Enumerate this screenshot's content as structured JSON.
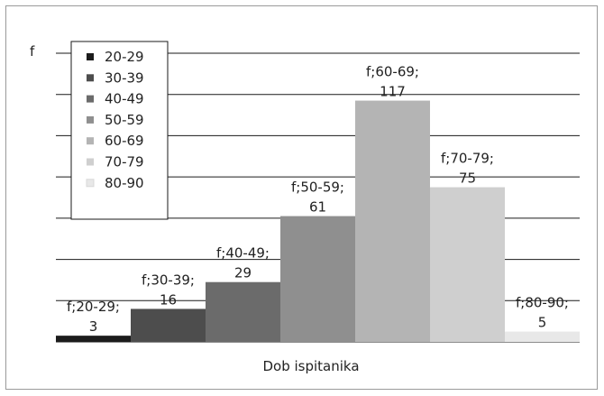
{
  "chart_data": {
    "type": "bar",
    "title": "",
    "xlabel": "Dob ispitanika",
    "ylabel": "f",
    "ylim": [
      0,
      140
    ],
    "grid": true,
    "legend_position": "top-left",
    "categories": [
      "20-29",
      "30-39",
      "40-49",
      "50-59",
      "60-69",
      "70-79",
      "80-90"
    ],
    "values": [
      3,
      16,
      29,
      61,
      117,
      75,
      5
    ],
    "data_labels": [
      [
        "f;20-29;",
        "3"
      ],
      [
        "f;30-39;",
        "16"
      ],
      [
        "f;40-49;",
        "29"
      ],
      [
        "f;50-59;",
        "61"
      ],
      [
        "f;60-69;",
        "117"
      ],
      [
        "f;70-79;",
        "75"
      ],
      [
        "f;80-90;",
        "5"
      ]
    ],
    "colors": [
      "#1c1c1c",
      "#4d4d4d",
      "#6b6b6b",
      "#8f8f8f",
      "#b4b4b4",
      "#cfcfcf",
      "#e8e8e8"
    ]
  }
}
